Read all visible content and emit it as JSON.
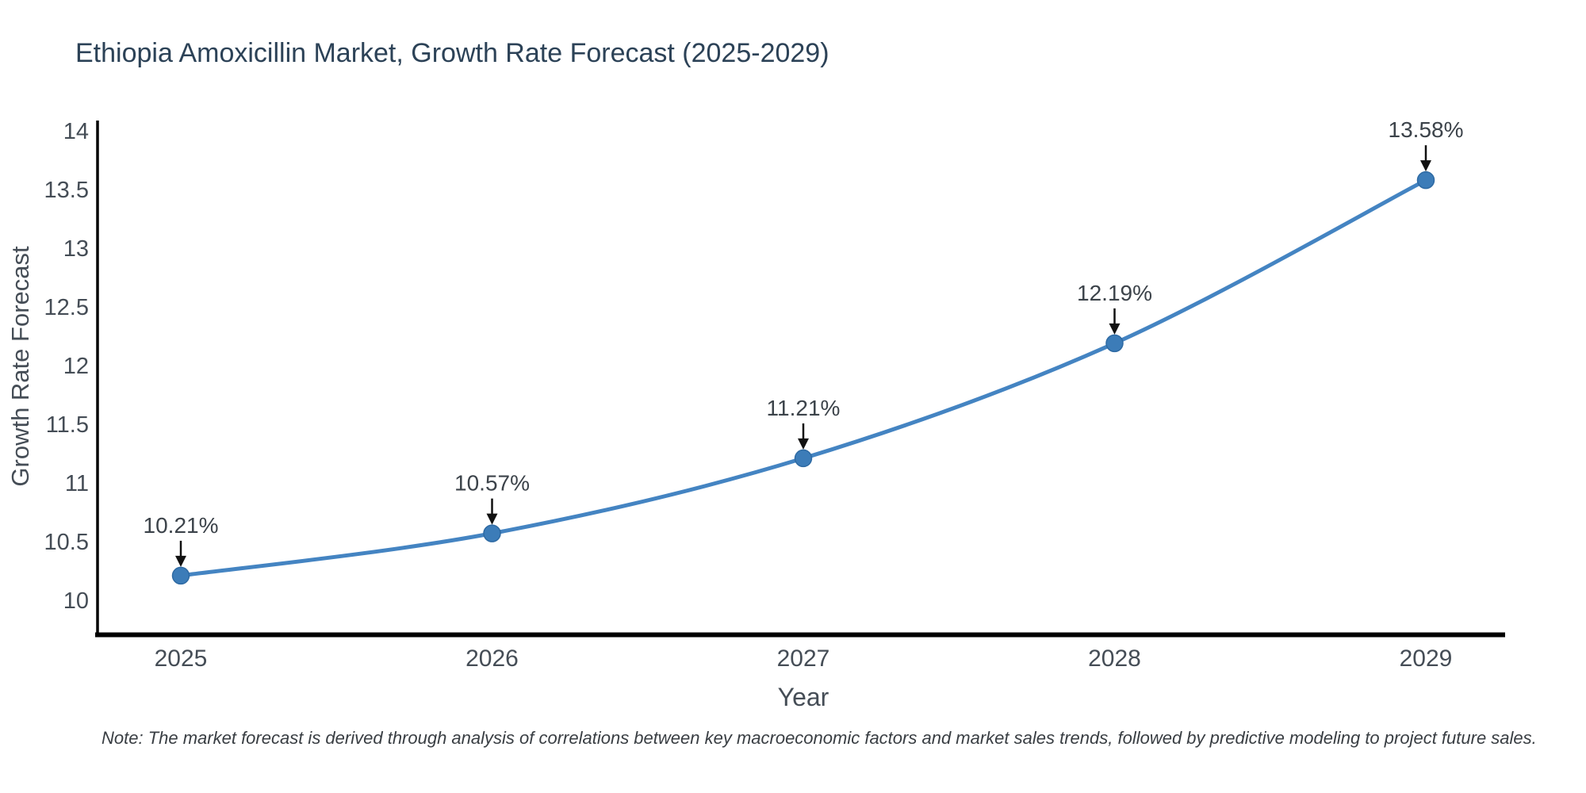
{
  "note": "Note: The market forecast is derived through analysis of correlations between key macroeconomic factors and market sales trends, followed by predictive modeling to project future sales.",
  "chart_data": {
    "type": "line",
    "title": "Ethiopia Amoxicillin Market, Growth Rate Forecast (2025-2029)",
    "xlabel": "Year",
    "ylabel": "Growth Rate Forecast",
    "categories": [
      "2025",
      "2026",
      "2027",
      "2028",
      "2029"
    ],
    "x": [
      2025,
      2026,
      2027,
      2028,
      2029
    ],
    "values": [
      10.21,
      10.57,
      11.21,
      12.19,
      13.58
    ],
    "point_labels": [
      "10.21%",
      "10.57%",
      "11.21%",
      "12.19%",
      "13.58%"
    ],
    "yticks": [
      10,
      10.5,
      11,
      11.5,
      12,
      12.5,
      13,
      13.5,
      14
    ],
    "ylim": [
      9.7,
      14.1
    ],
    "grid": false,
    "legend": false,
    "line_shape": "spline",
    "annotation_style": "label-above-with-down-arrow",
    "line_color": "#4484c2",
    "marker_color": "#3c7cb8",
    "marker_edge_color": "#2e6aa3",
    "arrow_color": "#111111",
    "axis_color": "#000000",
    "tick_text_color": "#454d56",
    "title_color": "#2c4257"
  }
}
